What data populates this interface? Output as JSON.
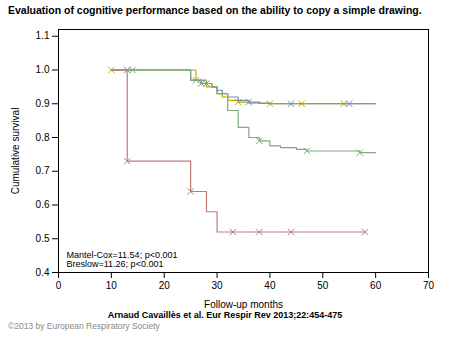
{
  "chart_data": {
    "type": "step",
    "title": "Evaluation of cognitive performance based on the ability to copy a simple drawing.",
    "xlabel": "Follow-up months",
    "ylabel": "Cumulative survival",
    "xlim": [
      0,
      70
    ],
    "ylim": [
      0.4,
      1.12
    ],
    "xticks": [
      0,
      10,
      20,
      30,
      40,
      50,
      60,
      70
    ],
    "yticks": [
      0.4,
      0.5,
      0.6,
      0.7,
      0.8,
      0.9,
      {
        "value": 1.0,
        "label": "1.0"
      },
      1.1
    ],
    "annotation": "Mantel-Cox=11.54; p<0.001\nBreslow=11.26; p<0.001",
    "footnotes": [
      "Arnaud Cavaillès et al. Eur Respir Rev 2013;22:454-475",
      "©2013 by European Respiratory Society"
    ],
    "marker": "x",
    "grid": false,
    "series": [
      {
        "color": "#b8b000",
        "x": [
          10,
          25,
          26,
          27,
          28,
          30,
          31,
          32,
          34,
          36,
          38,
          40,
          42,
          44,
          46,
          50,
          54,
          58,
          60
        ],
        "values": [
          1.0,
          1.0,
          0.97,
          0.96,
          0.95,
          0.93,
          0.92,
          0.91,
          0.905,
          0.902,
          0.901,
          0.9,
          0.9,
          0.9,
          0.9,
          0.9,
          0.9,
          0.9,
          0.9
        ],
        "censored": {
          "x": [
            10,
            26,
            34,
            40,
            46,
            54
          ],
          "values": [
            1.0,
            0.97,
            0.905,
            0.9,
            0.9,
            0.9
          ]
        }
      },
      {
        "color": "#7090b0",
        "x": [
          10,
          13,
          25,
          27,
          29,
          30,
          31,
          32,
          34,
          36,
          38,
          40,
          42,
          44,
          46,
          55,
          58,
          60
        ],
        "values": [
          1.0,
          1.0,
          0.97,
          0.96,
          0.95,
          0.94,
          0.93,
          0.92,
          0.91,
          0.905,
          0.902,
          0.9,
          0.9,
          0.9,
          0.9,
          0.9,
          0.9,
          0.9
        ],
        "censored": {
          "x": [
            13,
            27,
            36,
            44,
            55
          ],
          "values": [
            1.0,
            0.96,
            0.905,
            0.9,
            0.9
          ]
        }
      },
      {
        "color": "#80aa80",
        "x": [
          10,
          14,
          25,
          28,
          29,
          30,
          32,
          34,
          36,
          38,
          40,
          42,
          45,
          47,
          57,
          60
        ],
        "values": [
          1.0,
          1.0,
          0.97,
          0.96,
          0.95,
          0.93,
          0.88,
          0.83,
          0.8,
          0.79,
          0.775,
          0.77,
          0.765,
          0.76,
          0.755,
          0.755
        ],
        "censored": {
          "x": [
            14,
            28,
            38,
            47,
            57
          ],
          "values": [
            1.0,
            0.96,
            0.79,
            0.76,
            0.755
          ]
        }
      },
      {
        "color": "#c07878",
        "x": [
          10,
          13,
          22,
          25,
          28,
          30,
          33,
          36,
          38,
          40,
          42,
          44,
          58
        ],
        "values": [
          1.0,
          0.73,
          0.73,
          0.64,
          0.58,
          0.52,
          0.52,
          0.52,
          0.52,
          0.52,
          0.52,
          0.52,
          0.52
        ],
        "censored": {
          "x": [
            13,
            25,
            33,
            38,
            44,
            58
          ],
          "values": [
            0.73,
            0.64,
            0.52,
            0.52,
            0.52,
            0.52
          ]
        }
      }
    ]
  }
}
